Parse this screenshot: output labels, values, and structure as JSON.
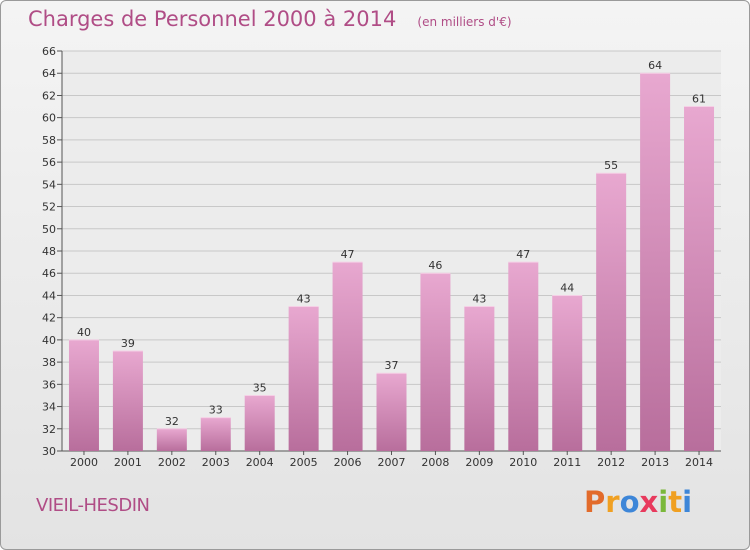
{
  "chart_data": {
    "type": "bar",
    "title": "Charges de Personnel 2000 à 2014",
    "subtitle": "(en milliers d'€)",
    "categories": [
      "2000",
      "2001",
      "2002",
      "2003",
      "2004",
      "2005",
      "2006",
      "2007",
      "2008",
      "2009",
      "2010",
      "2011",
      "2012",
      "2013",
      "2014"
    ],
    "values": [
      40,
      39,
      32,
      33,
      35,
      43,
      47,
      37,
      46,
      43,
      47,
      44,
      55,
      64,
      61
    ],
    "ylim": [
      30,
      66
    ],
    "yticks": [
      30,
      32,
      34,
      36,
      38,
      40,
      42,
      44,
      46,
      48,
      50,
      52,
      54,
      56,
      58,
      60,
      62,
      64,
      66
    ],
    "xlabel": "",
    "ylabel": "",
    "grid": true,
    "bar_color_top": "#e8a8d0",
    "bar_color_bottom": "#b86e9c"
  },
  "footer": {
    "location": "VIEIL-HESDIN",
    "logo_letters": [
      "P",
      "r",
      "o",
      "x",
      "i",
      "t",
      "i"
    ]
  }
}
